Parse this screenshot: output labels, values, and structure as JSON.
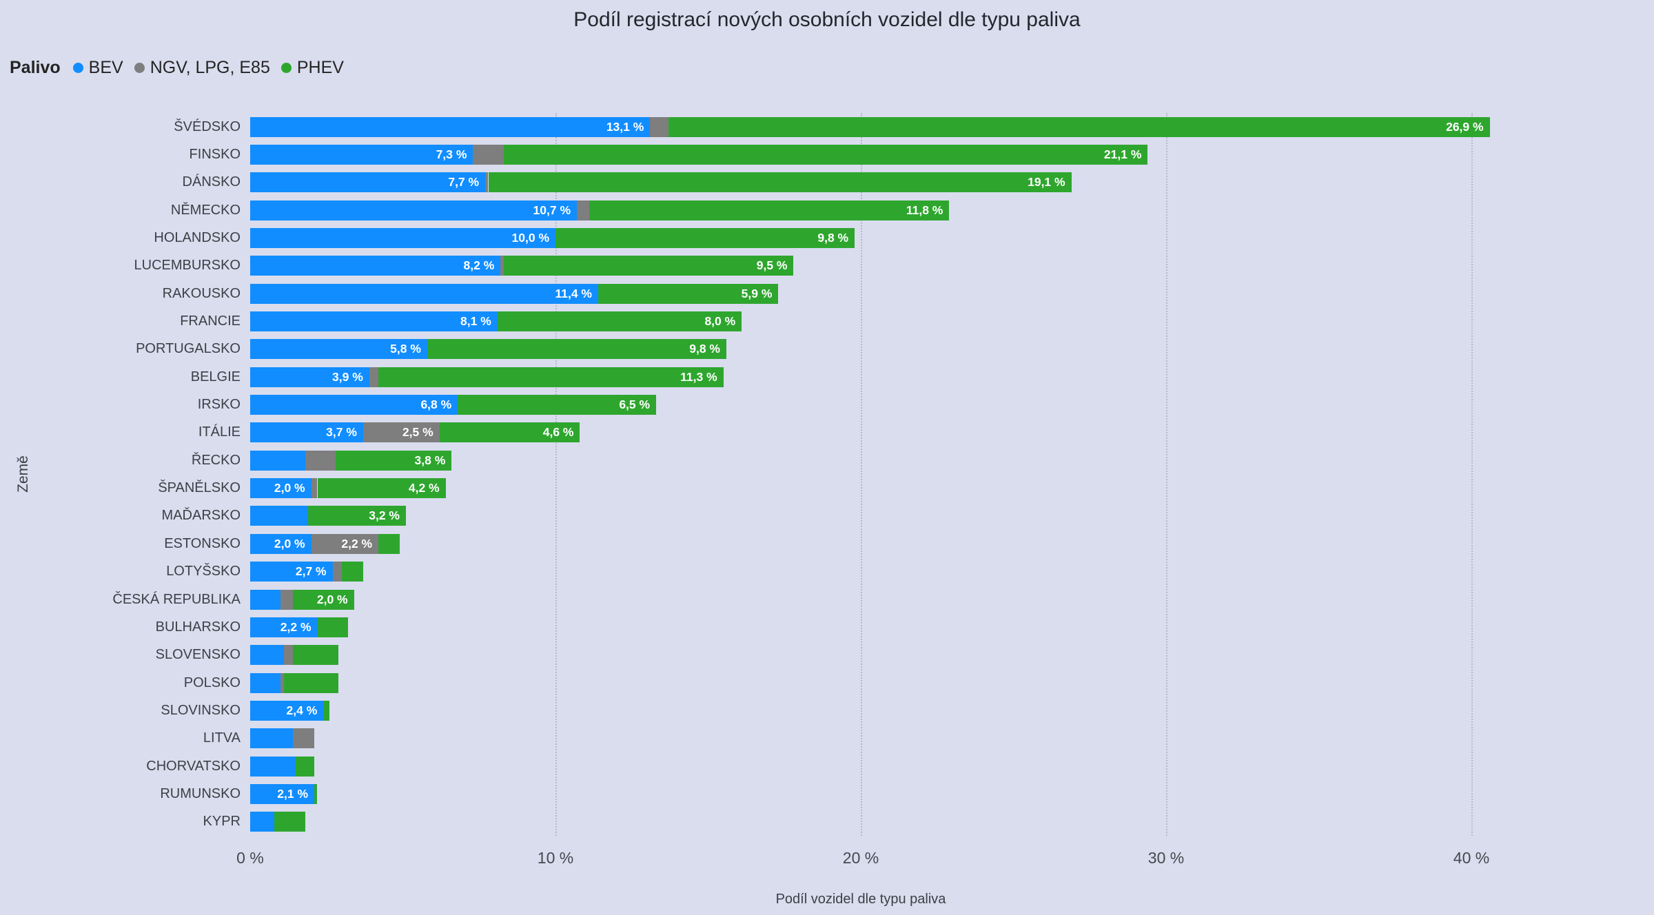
{
  "title": "Podíl registrací nových osobních vozidel dle typu paliva",
  "legend": {
    "label": "Palivo",
    "items": [
      {
        "name": "BEV",
        "color": "#118DFF"
      },
      {
        "name": "NGV, LPG, E85",
        "color": "#7E7E7E"
      },
      {
        "name": "PHEV",
        "color": "#2EA62E"
      }
    ]
  },
  "chart_data": {
    "type": "bar",
    "orientation": "horizontal",
    "stacked": true,
    "title": "Podíl registrací nových osobních vozidel dle typu paliva",
    "xlabel": "Podíl vozidel dle typu paliva",
    "ylabel": "Země",
    "xlim": [
      0,
      42
    ],
    "grid": "vertical-dotted",
    "legend_position": "top-left",
    "x_ticks": [
      "0 %",
      "10 %",
      "20 %",
      "30 %",
      "40 %"
    ],
    "x_tick_values": [
      0,
      10,
      20,
      30,
      40
    ],
    "series": [
      "BEV",
      "NGV, LPG, E85",
      "PHEV"
    ],
    "rows": [
      {
        "label": "ŠVÉDSKO",
        "values": [
          13.1,
          0.6,
          26.9
        ],
        "labels": [
          "13,1 %",
          null,
          "26,9 %"
        ]
      },
      {
        "label": "FINSKO",
        "values": [
          7.3,
          1.0,
          21.1
        ],
        "labels": [
          "7,3 %",
          null,
          "21,1 %"
        ]
      },
      {
        "label": "DÁNSKO",
        "values": [
          7.7,
          0.1,
          19.1
        ],
        "labels": [
          "7,7 %",
          null,
          "19,1 %"
        ]
      },
      {
        "label": "NĚMECKO",
        "values": [
          10.7,
          0.4,
          11.8
        ],
        "labels": [
          "10,7 %",
          null,
          "11,8 %"
        ]
      },
      {
        "label": "HOLANDSKO",
        "values": [
          10.0,
          0,
          9.8
        ],
        "labels": [
          "10,0 %",
          null,
          "9,8 %"
        ]
      },
      {
        "label": "LUCEMBURSKO",
        "values": [
          8.2,
          0.1,
          9.5
        ],
        "labels": [
          "8,2 %",
          null,
          "9,5 %"
        ]
      },
      {
        "label": "RAKOUSKO",
        "values": [
          11.4,
          0,
          5.9
        ],
        "labels": [
          "11,4 %",
          null,
          "5,9 %"
        ]
      },
      {
        "label": "FRANCIE",
        "values": [
          8.1,
          0,
          8.0
        ],
        "labels": [
          "8,1 %",
          null,
          "8,0 %"
        ]
      },
      {
        "label": "PORTUGALSKO",
        "values": [
          5.8,
          0,
          9.8
        ],
        "labels": [
          "5,8 %",
          null,
          "9,8 %"
        ]
      },
      {
        "label": "BELGIE",
        "values": [
          3.9,
          0.3,
          11.3
        ],
        "labels": [
          "3,9 %",
          null,
          "11,3 %"
        ]
      },
      {
        "label": "IRSKO",
        "values": [
          6.8,
          0,
          6.5
        ],
        "labels": [
          "6,8 %",
          null,
          "6,5 %"
        ]
      },
      {
        "label": "ITÁLIE",
        "values": [
          3.7,
          2.5,
          4.6
        ],
        "labels": [
          "3,7 %",
          "2,5 %",
          "4,6 %"
        ]
      },
      {
        "label": "ŘECKO",
        "values": [
          1.8,
          1.0,
          3.8
        ],
        "labels": [
          null,
          null,
          "3,8 %"
        ]
      },
      {
        "label": "ŠPANĚLSKO",
        "values": [
          2.0,
          0.2,
          4.2
        ],
        "labels": [
          "2,0 %",
          null,
          "4,2 %"
        ]
      },
      {
        "label": "MAĎARSKO",
        "values": [
          1.9,
          0,
          3.2
        ],
        "labels": [
          null,
          null,
          "3,2 %"
        ]
      },
      {
        "label": "ESTONSKO",
        "values": [
          2.0,
          2.2,
          0.7
        ],
        "labels": [
          "2,0 %",
          "2,2 %",
          null
        ]
      },
      {
        "label": "LOTYŠSKO",
        "values": [
          2.7,
          0.3,
          0.7
        ],
        "labels": [
          "2,7 %",
          null,
          null
        ]
      },
      {
        "label": "ČESKÁ REPUBLIKA",
        "values": [
          1.0,
          0.4,
          2.0
        ],
        "labels": [
          null,
          null,
          "2,0 %"
        ]
      },
      {
        "label": "BULHARSKO",
        "values": [
          2.2,
          0,
          1.0
        ],
        "labels": [
          "2,2 %",
          null,
          null
        ]
      },
      {
        "label": "SLOVENSKO",
        "values": [
          1.1,
          0.3,
          1.5
        ],
        "labels": [
          null,
          null,
          null
        ]
      },
      {
        "label": "POLSKO",
        "values": [
          1.0,
          0.1,
          1.8
        ],
        "labels": [
          null,
          null,
          null
        ]
      },
      {
        "label": "SLOVINSKO",
        "values": [
          2.4,
          0,
          0.2
        ],
        "labels": [
          "2,4 %",
          null,
          null
        ]
      },
      {
        "label": "LITVA",
        "values": [
          1.4,
          0.7,
          0
        ],
        "labels": [
          null,
          null,
          null
        ]
      },
      {
        "label": "CHORVATSKO",
        "values": [
          1.5,
          0,
          0.6
        ],
        "labels": [
          null,
          null,
          null
        ]
      },
      {
        "label": "RUMUNSKO",
        "values": [
          2.1,
          0,
          0.1
        ],
        "labels": [
          "2,1 %",
          null,
          null
        ]
      },
      {
        "label": "KYPR",
        "values": [
          0.8,
          0,
          1.0
        ],
        "labels": [
          null,
          null,
          null
        ]
      }
    ]
  }
}
